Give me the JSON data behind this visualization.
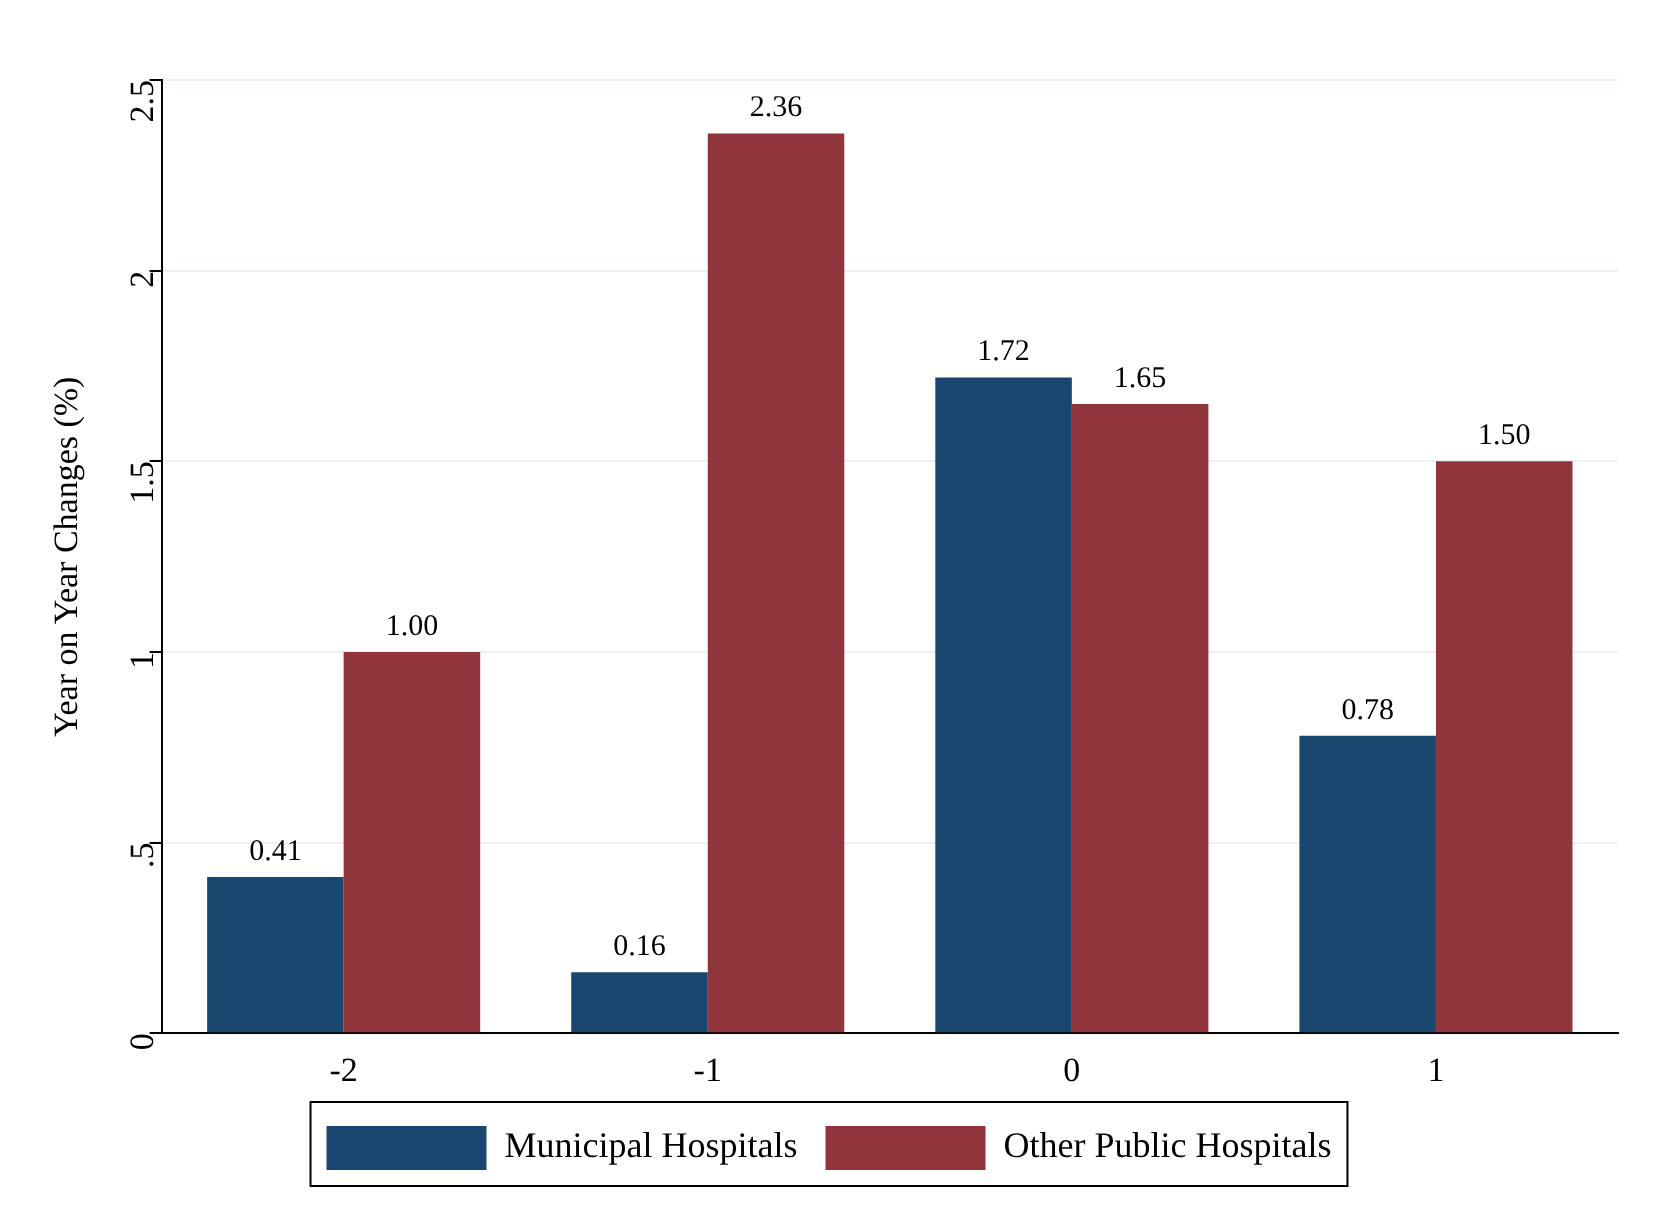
{
  "chart_data": {
    "type": "bar",
    "ylabel": "Year on Year Changes (%)",
    "categories": [
      "-2",
      "-1",
      "0",
      "1"
    ],
    "series": [
      {
        "name": "Municipal Hospitals",
        "color": "#1a476f",
        "values": [
          0.41,
          0.16,
          1.72,
          0.78
        ],
        "value_labels": [
          "0.41",
          "0.16",
          "1.72",
          "0.78"
        ]
      },
      {
        "name": "Other Public Hospitals",
        "color": "#90353b",
        "values": [
          1.0,
          2.36,
          1.65,
          1.5
        ],
        "value_labels": [
          "1.00",
          "2.36",
          "1.65",
          "1.50"
        ]
      }
    ],
    "ylim": [
      0,
      2.5
    ],
    "yticks": [
      0,
      {
        "value": 0.5,
        "label": ".5"
      },
      1,
      1.5,
      2,
      2.5
    ],
    "grid": "y",
    "legend": "bottom"
  }
}
